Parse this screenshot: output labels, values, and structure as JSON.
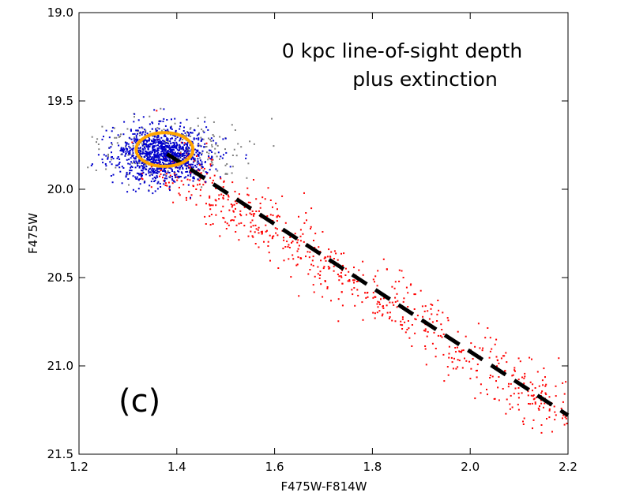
{
  "chart_data": {
    "type": "scatter",
    "xlabel": "F475W-F814W",
    "ylabel": "F475W",
    "xlim": [
      1.2,
      2.2
    ],
    "ylim": [
      21.5,
      19.0
    ],
    "y_inverted": true,
    "xticks": [
      "1.2",
      "1.4",
      "1.6",
      "1.8",
      "2.0",
      "2.2"
    ],
    "yticks": [
      "19.0",
      "19.5",
      "20.0",
      "20.5",
      "21.0",
      "21.5"
    ],
    "annotation_lines": [
      "0 kpc line-of-sight depth",
      "plus extinction"
    ],
    "panel_label": "(c)",
    "grid": false,
    "series": [
      {
        "kind": "points",
        "color": "#7f7f7f",
        "distribution": {
          "center": [
            1.39,
            19.78
          ],
          "spread": [
            0.075,
            0.09
          ],
          "count": 260
        }
      },
      {
        "kind": "points",
        "color": "#ff0000",
        "distribution": {
          "from": [
            1.38,
            19.85
          ],
          "to": [
            2.2,
            21.3
          ],
          "scatter": [
            0.03,
            0.08
          ],
          "count": 750
        }
      },
      {
        "kind": "points",
        "color": "#0000cc",
        "distribution": {
          "center": [
            1.37,
            19.8
          ],
          "spread": [
            0.048,
            0.075
          ],
          "count": 1100
        }
      },
      {
        "kind": "dashed-line",
        "color": "#000000",
        "x": [
          1.38,
          2.2
        ],
        "y": [
          19.8,
          21.28
        ]
      },
      {
        "kind": "ellipse",
        "color": "#ffa500",
        "center": [
          1.375,
          19.775
        ],
        "radii": [
          0.058,
          0.095
        ]
      }
    ]
  }
}
